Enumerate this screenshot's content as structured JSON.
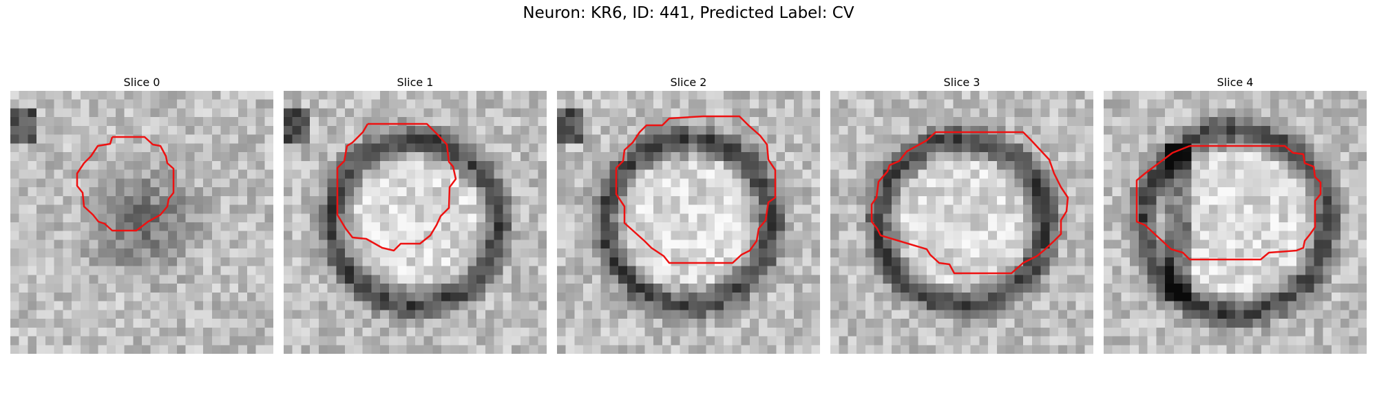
{
  "figure": {
    "title": "Neuron: KR6, ID: 441, Predicted Label: CV",
    "slices": [
      {
        "label": "Slice 0",
        "ring": "filled-dark-blob"
      },
      {
        "label": "Slice 1",
        "ring": "dark-ring"
      },
      {
        "label": "Slice 2",
        "ring": "dark-ring"
      },
      {
        "label": "Slice 3",
        "ring": "dark-ring"
      },
      {
        "label": "Slice 4",
        "ring": "dark-ring-with-bar"
      }
    ],
    "colors": {
      "contour": "#ee1111",
      "background": "#ffffff"
    },
    "colormap": "grayscale"
  }
}
